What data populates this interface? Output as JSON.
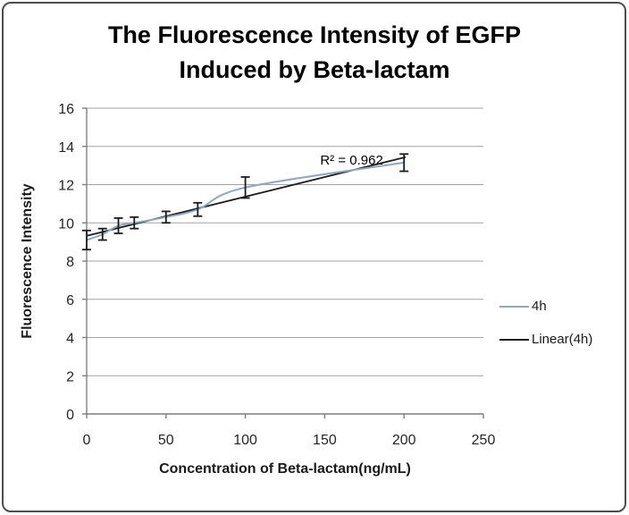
{
  "figure": {
    "background": "#ffffff",
    "border_color": "#4d4d4d",
    "gridline_color": "#a3a3a3",
    "axis_color": "#7f7f7f",
    "error_bar_color": "#1c1c1c"
  },
  "chart_data": {
    "type": "line",
    "title_lines": [
      "The Fluorescence Intensity of EGFP",
      "Induced by Beta-lactam"
    ],
    "xlabel": "Concentration of Beta-lactam(ng/mL)",
    "ylabel": "Fluorescence Intensity",
    "xlim": [
      0,
      250
    ],
    "ylim": [
      0,
      16
    ],
    "xticks": [
      0,
      50,
      100,
      150,
      200,
      250
    ],
    "yticks": [
      0,
      2,
      4,
      6,
      8,
      10,
      12,
      14,
      16
    ],
    "grid": "horizontal-only",
    "legend_position": "right-middle",
    "annotation": {
      "text": "R² = 0.962",
      "x": 167,
      "y": 13.24
    },
    "x": [
      0,
      10,
      20,
      30,
      50,
      70,
      100,
      200
    ],
    "series": [
      {
        "name": "4h",
        "kind": "smooth-line-with-error-bars",
        "color": "#8fa8bf",
        "values": [
          9.1,
          9.4,
          9.85,
          10.0,
          10.3,
          10.7,
          11.85,
          13.15
        ],
        "yerr": [
          0.5,
          0.3,
          0.4,
          0.3,
          0.3,
          0.35,
          0.55,
          0.45
        ]
      },
      {
        "name": "Linear(4h)",
        "kind": "trendline",
        "color": "#1c1c1c",
        "slope": 0.0205,
        "intercept": 9.32,
        "x_range": [
          0,
          201
        ]
      }
    ]
  }
}
